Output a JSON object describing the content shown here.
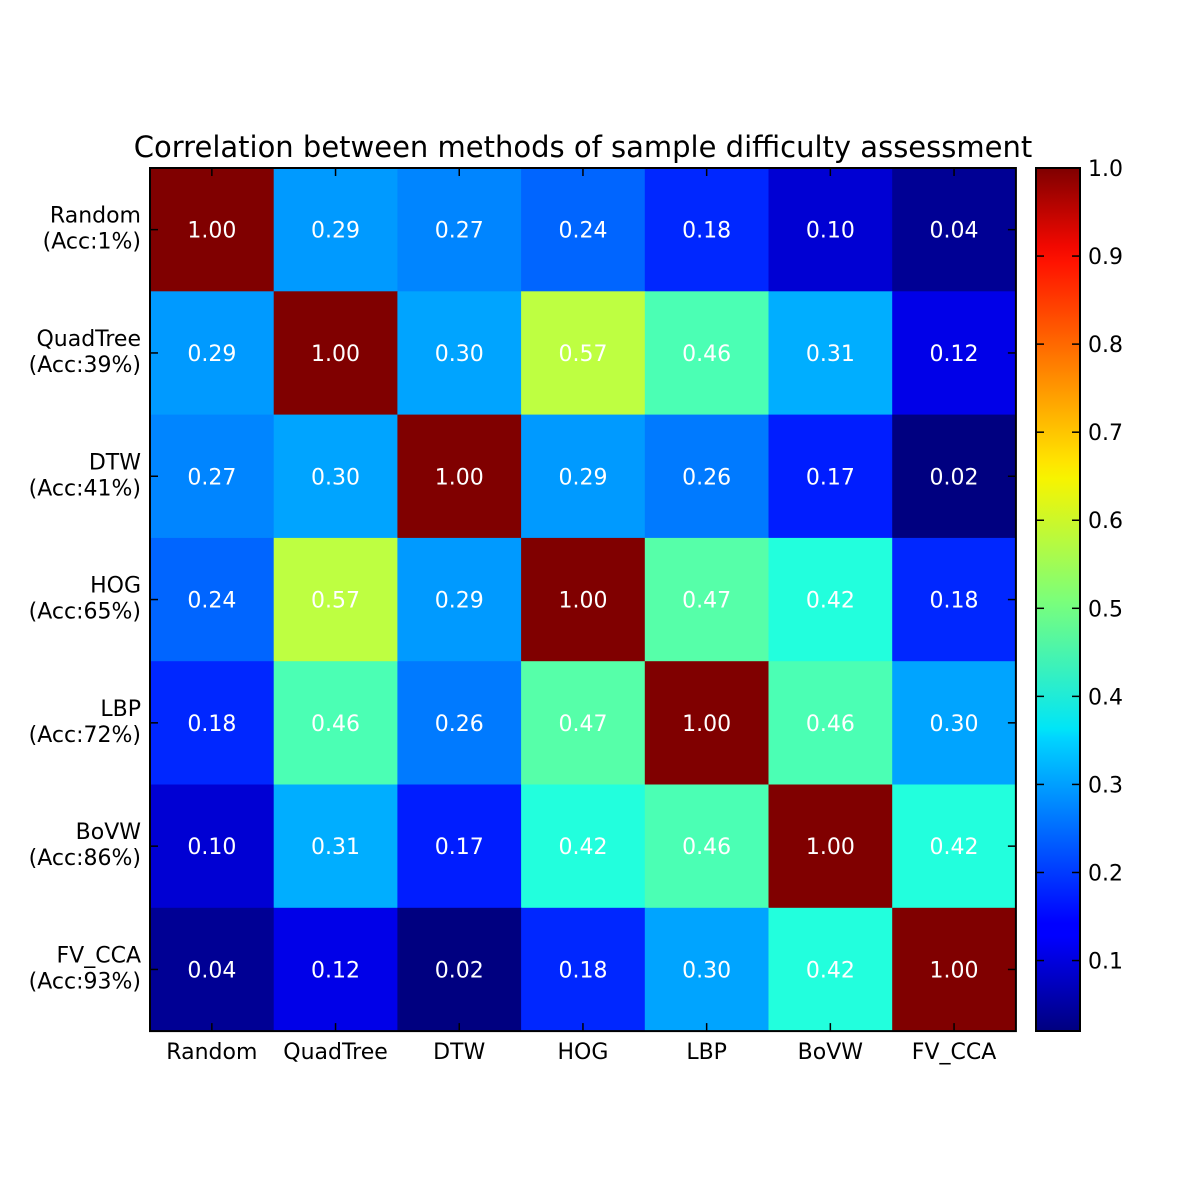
{
  "chart_data": {
    "type": "heatmap",
    "title": "Correlation between methods of sample difficulty assessment",
    "columns": [
      "Random",
      "QuadTree",
      "DTW",
      "HOG",
      "LBP",
      "BoVW",
      "FV_CCA"
    ],
    "rows": [
      {
        "name": "Random",
        "acc": "(Acc:1%)"
      },
      {
        "name": "QuadTree",
        "acc": "(Acc:39%)"
      },
      {
        "name": "DTW",
        "acc": "(Acc:41%)"
      },
      {
        "name": "HOG",
        "acc": "(Acc:65%)"
      },
      {
        "name": "LBP",
        "acc": "(Acc:72%)"
      },
      {
        "name": "BoVW",
        "acc": "(Acc:86%)"
      },
      {
        "name": "FV_CCA",
        "acc": "(Acc:93%)"
      }
    ],
    "values": [
      [
        1.0,
        0.29,
        0.27,
        0.24,
        0.18,
        0.1,
        0.04
      ],
      [
        0.29,
        1.0,
        0.3,
        0.57,
        0.46,
        0.31,
        0.12
      ],
      [
        0.27,
        0.3,
        1.0,
        0.29,
        0.26,
        0.17,
        0.02
      ],
      [
        0.24,
        0.57,
        0.29,
        1.0,
        0.47,
        0.42,
        0.18
      ],
      [
        0.18,
        0.46,
        0.26,
        0.47,
        1.0,
        0.46,
        0.3
      ],
      [
        0.1,
        0.31,
        0.17,
        0.42,
        0.46,
        1.0,
        0.42
      ],
      [
        0.04,
        0.12,
        0.02,
        0.18,
        0.3,
        0.42,
        1.0
      ]
    ],
    "colormap": "jet",
    "color_range": [
      0.02,
      1.0
    ],
    "colorbar_ticks": [
      "0.1",
      "0.2",
      "0.3",
      "0.4",
      "0.5",
      "0.6",
      "0.7",
      "0.8",
      "0.9",
      "1.0"
    ],
    "xlabel": "",
    "ylabel": ""
  }
}
